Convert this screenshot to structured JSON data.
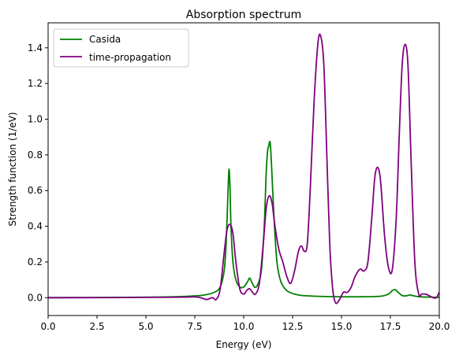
{
  "chart_data": {
    "type": "line",
    "title": "Absorption spectrum",
    "xlabel": "Energy (eV)",
    "ylabel": "Strength function (1/eV)",
    "xlim": [
      0,
      20
    ],
    "ylim": [
      -0.1,
      1.54
    ],
    "xticks": [
      0,
      2.5,
      5,
      7.5,
      10,
      12.5,
      15,
      17.5,
      20
    ],
    "xtick_labels": [
      "0.0",
      "2.5",
      "5.0",
      "7.5",
      "10.0",
      "12.5",
      "15.0",
      "17.5",
      "20.0"
    ],
    "yticks": [
      0,
      0.2,
      0.4,
      0.6,
      0.8,
      1.0,
      1.2,
      1.4
    ],
    "ytick_labels": [
      "0.0",
      "0.2",
      "0.4",
      "0.6",
      "0.8",
      "1.0",
      "1.2",
      "1.4"
    ],
    "grid": false,
    "legend_position": "top-left",
    "series": [
      {
        "name": "Casida",
        "color": "#008000",
        "x": [
          0,
          2,
          4,
          6,
          7,
          7.5,
          8,
          8.5,
          8.8,
          9.0,
          9.1,
          9.2,
          9.25,
          9.3,
          9.35,
          9.45,
          9.6,
          9.8,
          10.0,
          10.2,
          10.3,
          10.4,
          10.55,
          10.7,
          10.9,
          11.05,
          11.15,
          11.22,
          11.28,
          11.35,
          11.42,
          11.55,
          11.7,
          11.9,
          12.2,
          12.6,
          13.0,
          14.0,
          15.0,
          16.0,
          17.0,
          17.4,
          17.6,
          17.75,
          17.9,
          18.1,
          18.3,
          18.5,
          18.7,
          19.0,
          19.5,
          20.0
        ],
        "y": [
          0.0,
          0.001,
          0.002,
          0.004,
          0.007,
          0.01,
          0.015,
          0.03,
          0.06,
          0.15,
          0.3,
          0.6,
          0.72,
          0.62,
          0.4,
          0.2,
          0.1,
          0.06,
          0.06,
          0.09,
          0.11,
          0.09,
          0.06,
          0.07,
          0.15,
          0.4,
          0.7,
          0.82,
          0.85,
          0.87,
          0.75,
          0.45,
          0.2,
          0.09,
          0.04,
          0.02,
          0.012,
          0.007,
          0.005,
          0.005,
          0.008,
          0.02,
          0.04,
          0.045,
          0.03,
          0.012,
          0.01,
          0.015,
          0.01,
          0.005,
          0.003,
          0.002
        ]
      },
      {
        "name": "time-propagation",
        "color": "#800080",
        "x": [
          0,
          2,
          4,
          6,
          7,
          7.5,
          7.8,
          8.1,
          8.4,
          8.6,
          8.8,
          9.0,
          9.15,
          9.3,
          9.45,
          9.6,
          9.8,
          10.0,
          10.15,
          10.3,
          10.45,
          10.6,
          10.8,
          11.0,
          11.15,
          11.3,
          11.45,
          11.6,
          11.8,
          12.0,
          12.2,
          12.4,
          12.6,
          12.8,
          12.95,
          13.1,
          13.25,
          13.4,
          13.6,
          13.8,
          13.95,
          14.1,
          14.25,
          14.4,
          14.55,
          14.7,
          14.9,
          15.1,
          15.3,
          15.5,
          15.7,
          15.95,
          16.15,
          16.35,
          16.55,
          16.7,
          16.85,
          17.0,
          17.2,
          17.4,
          17.6,
          17.8,
          17.95,
          18.1,
          18.25,
          18.4,
          18.55,
          18.75,
          18.95,
          19.1,
          19.3,
          19.5,
          19.7,
          19.85,
          20.0
        ],
        "y": [
          0.0,
          0.0,
          0.001,
          0.002,
          0.003,
          0.004,
          0.0,
          -0.01,
          0.0,
          -0.01,
          0.05,
          0.25,
          0.38,
          0.41,
          0.36,
          0.2,
          0.05,
          0.02,
          0.04,
          0.05,
          0.03,
          0.02,
          0.08,
          0.3,
          0.5,
          0.57,
          0.53,
          0.4,
          0.27,
          0.2,
          0.12,
          0.08,
          0.15,
          0.26,
          0.29,
          0.26,
          0.3,
          0.6,
          1.1,
          1.43,
          1.46,
          1.3,
          0.8,
          0.3,
          0.05,
          -0.03,
          -0.01,
          0.03,
          0.03,
          0.06,
          0.12,
          0.16,
          0.15,
          0.2,
          0.45,
          0.67,
          0.73,
          0.65,
          0.35,
          0.17,
          0.16,
          0.45,
          0.9,
          1.3,
          1.42,
          1.3,
          0.8,
          0.2,
          0.02,
          0.02,
          0.02,
          0.01,
          0.0,
          0.0,
          0.03
        ]
      }
    ]
  }
}
